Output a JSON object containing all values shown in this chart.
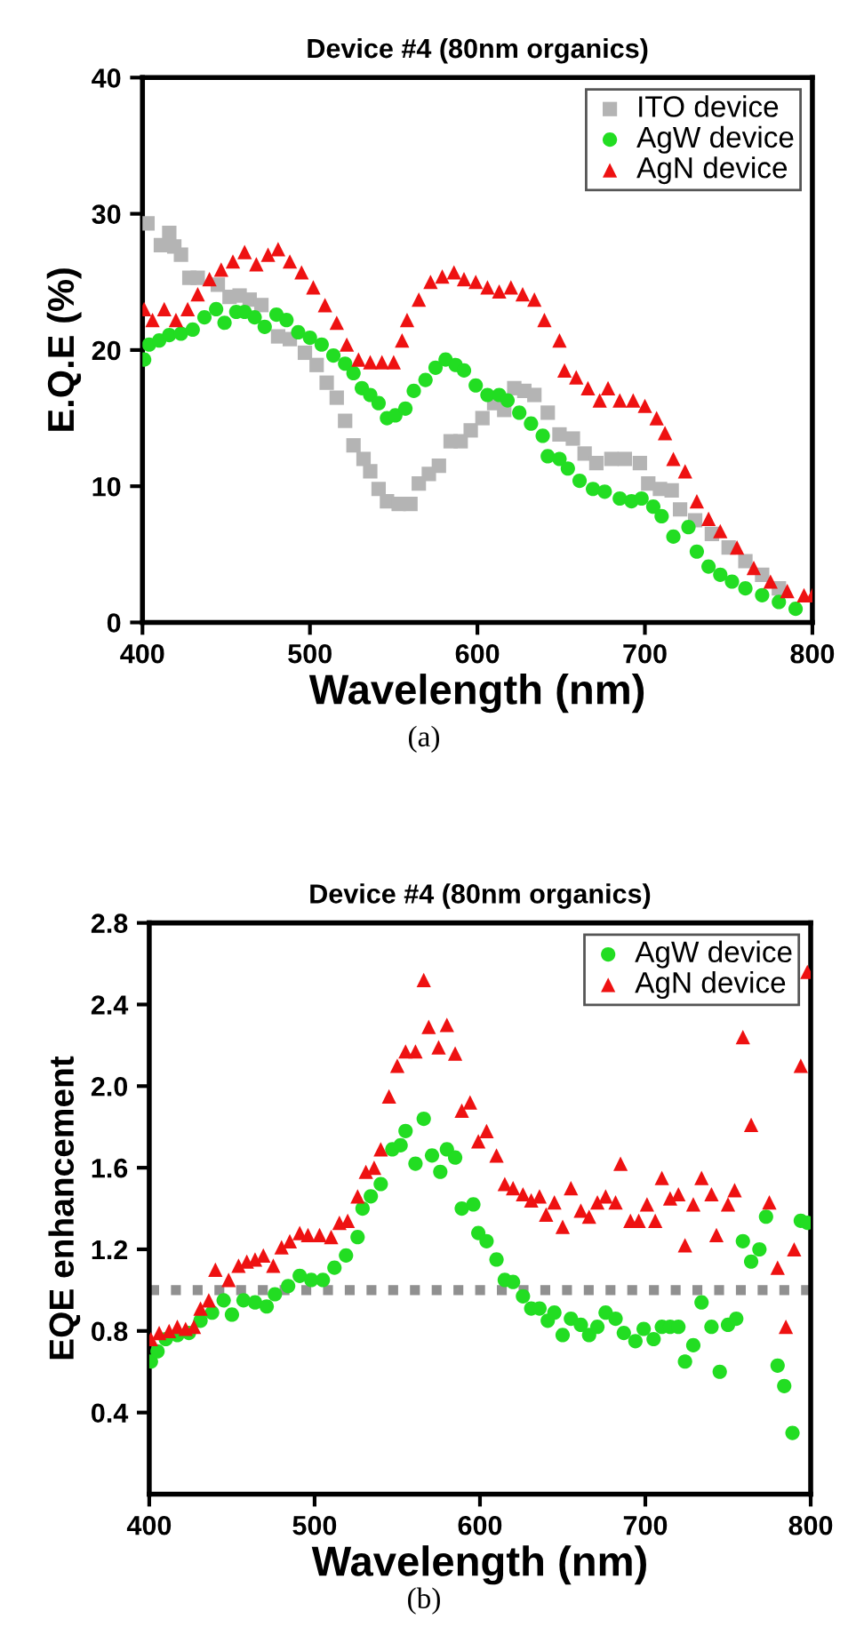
{
  "chart_data": [
    {
      "type": "scatter",
      "title": "Device #4 (80nm organics)",
      "xlabel": "Wavelength (nm)",
      "ylabel": "E.Q.E (%)",
      "xlim": [
        400,
        800
      ],
      "ylim": [
        0,
        40
      ],
      "xticks": [
        400,
        500,
        600,
        700,
        800
      ],
      "yticks": [
        0,
        10,
        20,
        30,
        40
      ],
      "legend": "top right",
      "grid": false,
      "annotations": [
        "(a)"
      ],
      "series": [
        {
          "name": "ITO device",
          "color": "#b4b4b4",
          "marker": "square",
          "x": [
            403,
            411,
            416,
            419,
            423,
            428,
            433,
            445,
            452,
            458,
            464,
            471,
            481,
            488,
            497,
            504,
            510,
            516,
            521,
            526,
            532,
            536,
            541,
            546,
            553,
            560,
            565,
            571,
            577,
            584,
            590,
            596,
            603,
            610,
            616,
            622,
            628,
            634,
            642,
            649,
            657,
            664,
            671,
            680,
            688,
            697,
            702,
            709,
            716,
            721,
            730,
            740,
            750,
            760,
            770,
            780
          ],
          "values": [
            29.3,
            27.7,
            28.6,
            27.6,
            27,
            25.3,
            25.3,
            24.8,
            23.9,
            24,
            23.7,
            23.3,
            21,
            20.8,
            19.8,
            18.9,
            17.6,
            16.5,
            14.8,
            13,
            12,
            11.1,
            9.8,
            8.9,
            8.7,
            8.7,
            10.2,
            10.9,
            11.5,
            13.3,
            13.3,
            14.1,
            15,
            16.1,
            15.6,
            17.2,
            17,
            16.7,
            15.4,
            13.8,
            13.5,
            12.4,
            11.7,
            12,
            12,
            11.7,
            10.2,
            9.8,
            9.7,
            8.3,
            7.5,
            6.5,
            5.5,
            4.5,
            3.5,
            2.5
          ]
        },
        {
          "name": "AgW device",
          "color": "#22dd22",
          "marker": "circle",
          "x": [
            401,
            404,
            410,
            416,
            423,
            430,
            437,
            444,
            449,
            456,
            461,
            467,
            473,
            480,
            486,
            493,
            500,
            507,
            514,
            521,
            526,
            531,
            536,
            541,
            546,
            551,
            557,
            562,
            569,
            575,
            581,
            587,
            592,
            599,
            606,
            613,
            618,
            625,
            632,
            639,
            642,
            649,
            654,
            661,
            669,
            676,
            685,
            692,
            698,
            705,
            710,
            717,
            726,
            731,
            738,
            745,
            752,
            760,
            770,
            780,
            790
          ],
          "values": [
            19.3,
            20.4,
            20.7,
            21.1,
            21.2,
            21.5,
            22.4,
            23,
            22,
            22.8,
            22.8,
            22.4,
            21.7,
            22.6,
            22.2,
            21.3,
            20.9,
            20.4,
            19.6,
            19,
            18.3,
            17.2,
            16.7,
            16.1,
            15,
            15.2,
            15.7,
            17,
            17.8,
            18.7,
            19.3,
            18.9,
            18.5,
            17.4,
            16.7,
            16.7,
            16.3,
            15.4,
            14.6,
            13.7,
            12.2,
            12,
            11.3,
            10.4,
            9.8,
            9.6,
            9.1,
            8.9,
            9.1,
            8.5,
            7.8,
            6.3,
            7,
            5.2,
            4.1,
            3.5,
            3,
            2.5,
            2,
            1.5,
            1
          ]
        },
        {
          "name": "AgN device",
          "color": "#ee1111",
          "marker": "triangle",
          "x": [
            401,
            406,
            413,
            420,
            427,
            433,
            440,
            447,
            454,
            461,
            468,
            475,
            481,
            488,
            495,
            502,
            509,
            516,
            522,
            529,
            536,
            543,
            550,
            555,
            558,
            565,
            572,
            579,
            586,
            592,
            599,
            606,
            613,
            620,
            627,
            634,
            640,
            649,
            652,
            659,
            666,
            673,
            678,
            685,
            693,
            700,
            707,
            712,
            717,
            724,
            731,
            738,
            745,
            755,
            765,
            775,
            785,
            795,
            800
          ],
          "values": [
            23,
            22.2,
            23,
            22.2,
            23,
            24.1,
            25.2,
            25.9,
            26.5,
            27.2,
            26.3,
            27,
            27.4,
            26.5,
            25.7,
            24.6,
            23.3,
            22,
            20.4,
            19.3,
            19.1,
            19.1,
            19.1,
            20.7,
            22.2,
            23.7,
            25,
            25.4,
            25.7,
            25.2,
            25,
            24.6,
            24.3,
            24.6,
            24.1,
            23.7,
            22.2,
            20.7,
            18.5,
            18,
            17.2,
            16.3,
            17.2,
            16.3,
            16.3,
            15.9,
            15,
            13.9,
            12,
            11.1,
            8.9,
            7.6,
            6.7,
            5.5,
            4,
            3,
            2.3,
            2,
            2
          ]
        }
      ]
    },
    {
      "type": "scatter",
      "title": "Device #4 (80nm organics)",
      "xlabel": "Wavelength (nm)",
      "ylabel": "EQE enhancement",
      "xlim": [
        400,
        800
      ],
      "ylim": [
        0,
        2.8
      ],
      "xticks": [
        400,
        500,
        600,
        700,
        800
      ],
      "yticks": [
        0.4,
        0.8,
        1.2,
        1.6,
        {
          "value": 2,
          "label": "2.0"
        },
        2.4,
        2.8
      ],
      "legend": "top right",
      "grid": false,
      "annotations": [
        "(b)"
      ],
      "ref_lines": [
        {
          "axis": "y",
          "value": 1,
          "color": "#909090",
          "line_style": "dotted"
        }
      ],
      "series": [
        {
          "name": "AgW device",
          "color": "#22dd22",
          "marker": "circle",
          "x": [
            401,
            405,
            410,
            417,
            424,
            431,
            438,
            445,
            450,
            457,
            464,
            471,
            476,
            484,
            491,
            498,
            505,
            512,
            519,
            526,
            529,
            534,
            540,
            547,
            552,
            555,
            561,
            566,
            571,
            576,
            580,
            585,
            589,
            596,
            599,
            604,
            610,
            615,
            620,
            626,
            631,
            636,
            641,
            645,
            650,
            655,
            661,
            666,
            671,
            676,
            682,
            687,
            694,
            699,
            705,
            710,
            715,
            720,
            724,
            729,
            734,
            740,
            745,
            750,
            755,
            759,
            764,
            769,
            773,
            780,
            784,
            789,
            794,
            798
          ],
          "values": [
            0.65,
            0.7,
            0.76,
            0.78,
            0.79,
            0.85,
            0.89,
            0.95,
            0.88,
            0.95,
            0.94,
            0.92,
            0.98,
            1.02,
            1.07,
            1.05,
            1.05,
            1.11,
            1.17,
            1.26,
            1.4,
            1.46,
            1.52,
            1.69,
            1.71,
            1.78,
            1.62,
            1.84,
            1.66,
            1.58,
            1.69,
            1.65,
            1.4,
            1.42,
            1.28,
            1.24,
            1.15,
            1.05,
            1.04,
            0.97,
            0.91,
            0.91,
            0.85,
            0.89,
            0.78,
            0.86,
            0.83,
            0.78,
            0.82,
            0.89,
            0.86,
            0.79,
            0.75,
            0.81,
            0.76,
            0.82,
            0.82,
            0.82,
            0.65,
            0.73,
            0.94,
            0.82,
            0.6,
            0.83,
            0.86,
            1.24,
            1.14,
            1.2,
            1.36,
            0.63,
            0.53,
            0.3,
            1.34,
            1.33
          ]
        },
        {
          "name": "AgN device",
          "color": "#ee1111",
          "marker": "triangle",
          "x": [
            401,
            406,
            412,
            417,
            422,
            427,
            431,
            436,
            440,
            448,
            454,
            459,
            464,
            469,
            475,
            480,
            485,
            491,
            496,
            503,
            510,
            515,
            520,
            526,
            531,
            536,
            540,
            545,
            550,
            555,
            561,
            566,
            569,
            575,
            580,
            585,
            589,
            594,
            599,
            604,
            610,
            615,
            620,
            626,
            631,
            636,
            640,
            645,
            650,
            655,
            661,
            666,
            671,
            676,
            682,
            685,
            691,
            696,
            701,
            706,
            710,
            715,
            720,
            724,
            729,
            734,
            740,
            743,
            750,
            754,
            759,
            764,
            775,
            780,
            785,
            790,
            794,
            798
          ],
          "values": [
            0.76,
            0.79,
            0.8,
            0.82,
            0.81,
            0.82,
            0.91,
            0.95,
            1.1,
            1.05,
            1.12,
            1.14,
            1.15,
            1.17,
            1.12,
            1.21,
            1.24,
            1.28,
            1.27,
            1.27,
            1.26,
            1.33,
            1.34,
            1.46,
            1.58,
            1.6,
            1.69,
            1.95,
            2.1,
            2.17,
            2.17,
            2.52,
            2.29,
            2.19,
            2.3,
            2.16,
            1.88,
            1.92,
            1.73,
            1.78,
            1.66,
            1.52,
            1.5,
            1.47,
            1.44,
            1.46,
            1.37,
            1.43,
            1.31,
            1.5,
            1.39,
            1.36,
            1.43,
            1.46,
            1.43,
            1.62,
            1.34,
            1.34,
            1.42,
            1.34,
            1.55,
            1.45,
            1.47,
            1.22,
            1.42,
            1.55,
            1.47,
            1.27,
            1.42,
            1.49,
            2.24,
            1.81,
            1.43,
            1.11,
            0.82,
            1.2,
            2.1,
            2.56
          ]
        }
      ]
    }
  ]
}
